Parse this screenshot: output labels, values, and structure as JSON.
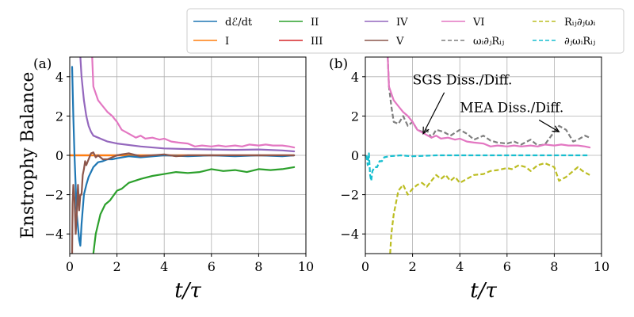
{
  "chart_data": {
    "type": "line",
    "xlabel": "t/τ",
    "ylabel": "Enstrophy Balance",
    "xlim": [
      0,
      10
    ],
    "ylim": [
      -5,
      5
    ],
    "xticks": [
      "0",
      "2",
      "4",
      "6",
      "8",
      "10"
    ],
    "yticks": [
      "−4",
      "−2",
      "0",
      "2",
      "4"
    ],
    "legend": [
      {
        "label": "dℰ/dt",
        "color": "#1f77b4",
        "dash": "solid"
      },
      {
        "label": "I",
        "color": "#ff7f0e",
        "dash": "solid"
      },
      {
        "label": "II",
        "color": "#2ca02c",
        "dash": "solid"
      },
      {
        "label": "III",
        "color": "#d62728",
        "dash": "solid"
      },
      {
        "label": "IV",
        "color": "#9467bd",
        "dash": "solid"
      },
      {
        "label": "V",
        "color": "#8c564b",
        "dash": "solid"
      },
      {
        "label": "VI",
        "color": "#e377c2",
        "dash": "solid"
      },
      {
        "label": "ωᵢ∂ⱼRᵢⱼ",
        "color": "#7f7f7f",
        "dash": "dashed"
      },
      {
        "label": "Rᵢⱼ∂ⱼωᵢ",
        "color": "#bcbd22",
        "dash": "dashed"
      },
      {
        "label": "∂ⱼωᵢRᵢⱼ",
        "color": "#17becf",
        "dash": "dashed"
      }
    ],
    "panels": [
      {
        "label": "(a)",
        "series": [
          {
            "name": "III",
            "color": "#d62728",
            "dash": "solid",
            "x": [
              0,
              1,
              2,
              4,
              6,
              8,
              9.5
            ],
            "y": [
              0,
              0,
              0,
              0,
              0,
              0,
              0
            ]
          },
          {
            "name": "I",
            "color": "#ff7f0e",
            "dash": "solid",
            "x": [
              0,
              2,
              4,
              6,
              8,
              9.5
            ],
            "y": [
              0,
              0,
              0,
              0,
              0,
              0
            ]
          },
          {
            "name": "dℰ/dt",
            "color": "#1f77b4",
            "dash": "solid",
            "x": [
              0.1,
              0.15,
              0.2,
              0.3,
              0.4,
              0.45,
              0.5,
              0.6,
              0.7,
              0.8,
              1.0,
              1.2,
              1.4,
              1.6,
              1.8,
              2.0,
              2.5,
              3.0,
              4.0,
              5.0,
              6.0,
              7.0,
              8.0,
              9.0,
              9.5
            ],
            "y": [
              4.5,
              2.0,
              0,
              -3.0,
              -4.3,
              -4.6,
              -3.5,
              -2.0,
              -1.5,
              -1.1,
              -0.6,
              -0.35,
              -0.3,
              -0.2,
              -0.2,
              -0.15,
              -0.05,
              -0.1,
              0,
              -0.05,
              0,
              -0.05,
              0,
              -0.05,
              0
            ]
          },
          {
            "name": "II",
            "color": "#2ca02c",
            "dash": "solid",
            "x": [
              1.0,
              1.1,
              1.3,
              1.5,
              1.7,
              2.0,
              2.2,
              2.5,
              3.0,
              3.5,
              4.0,
              4.5,
              5.0,
              5.5,
              6.0,
              6.5,
              7.0,
              7.5,
              8.0,
              8.5,
              9.0,
              9.5
            ],
            "y": [
              -5.0,
              -4.0,
              -3.0,
              -2.5,
              -2.3,
              -1.8,
              -1.7,
              -1.4,
              -1.2,
              -1.05,
              -0.95,
              -0.85,
              -0.9,
              -0.85,
              -0.7,
              -0.8,
              -0.75,
              -0.85,
              -0.7,
              -0.75,
              -0.7,
              -0.6
            ]
          },
          {
            "name": "V",
            "color": "#8c564b",
            "dash": "solid",
            "x": [
              0.1,
              0.12,
              0.15,
              0.2,
              0.25,
              0.3,
              0.35,
              0.4,
              0.45,
              0.5,
              0.55,
              0.6,
              0.65,
              0.7,
              0.8,
              0.9,
              1.0,
              1.1,
              1.2,
              1.4,
              1.6,
              1.8,
              2.0,
              2.2,
              2.5,
              3.0,
              3.5,
              4.0,
              4.5,
              5.0,
              6.0,
              7.0,
              8.0,
              9.0,
              9.5
            ],
            "y": [
              -5.0,
              -2.5,
              -1.5,
              -2.2,
              -4.0,
              -3.0,
              -1.5,
              -2.8,
              -2.0,
              -2.0,
              -1.0,
              -0.7,
              -0.3,
              -0.5,
              -0.2,
              0.1,
              0.15,
              -0.1,
              0,
              -0.2,
              -0.2,
              -0.1,
              0,
              0.05,
              0.1,
              -0.05,
              0,
              0.05,
              -0.05,
              0,
              0,
              0,
              0,
              0,
              0
            ]
          },
          {
            "name": "IV",
            "color": "#9467bd",
            "dash": "solid",
            "x": [
              0.45,
              0.5,
              0.6,
              0.7,
              0.8,
              0.9,
              1.0,
              1.2,
              1.4,
              1.6,
              2.0,
              3.0,
              4.0,
              5.0,
              6.0,
              7.0,
              8.0,
              9.0,
              9.5
            ],
            "y": [
              5.0,
              4.0,
              2.8,
              2.0,
              1.5,
              1.2,
              1.0,
              0.9,
              0.8,
              0.7,
              0.6,
              0.45,
              0.35,
              0.32,
              0.3,
              0.28,
              0.3,
              0.25,
              0.2
            ]
          },
          {
            "name": "VI",
            "color": "#e377c2",
            "dash": "solid",
            "x": [
              0.95,
              1.0,
              1.2,
              1.4,
              1.6,
              1.8,
              2.0,
              2.2,
              2.5,
              2.8,
              3.0,
              3.2,
              3.5,
              3.8,
              4.0,
              4.3,
              4.6,
              5.0,
              5.3,
              5.6,
              6.0,
              6.3,
              6.6,
              7.0,
              7.3,
              7.6,
              8.0,
              8.3,
              8.6,
              9.0,
              9.3,
              9.5
            ],
            "y": [
              5.0,
              3.5,
              2.8,
              2.5,
              2.2,
              2.0,
              1.7,
              1.3,
              1.1,
              0.9,
              1.0,
              0.85,
              0.9,
              0.8,
              0.85,
              0.7,
              0.65,
              0.6,
              0.45,
              0.5,
              0.45,
              0.5,
              0.45,
              0.5,
              0.45,
              0.55,
              0.5,
              0.55,
              0.5,
              0.5,
              0.45,
              0.4
            ]
          }
        ]
      },
      {
        "label": "(b)",
        "series": [
          {
            "name": "ωᵢ∂ⱼRᵢⱼ",
            "color": "#7f7f7f",
            "dash": "dashed",
            "x": [
              0.95,
              1.0,
              1.1,
              1.2,
              1.4,
              1.6,
              1.8,
              2.0,
              2.2,
              2.4,
              2.6,
              2.8,
              3.0,
              3.3,
              3.6,
              4.0,
              4.3,
              4.6,
              5.0,
              5.3,
              5.6,
              6.0,
              6.3,
              6.6,
              7.0,
              7.3,
              7.6,
              8.0,
              8.2,
              8.5,
              8.8,
              9.0,
              9.3,
              9.5
            ],
            "y": [
              5.0,
              3.5,
              2.5,
              1.7,
              1.6,
              2.0,
              1.5,
              1.7,
              1.3,
              1.2,
              1.3,
              0.9,
              1.3,
              1.2,
              1.0,
              1.3,
              1.1,
              0.8,
              1.0,
              0.75,
              0.65,
              0.6,
              0.7,
              0.55,
              0.8,
              0.5,
              0.55,
              1.2,
              1.5,
              1.3,
              0.7,
              0.8,
              1.0,
              0.9
            ]
          },
          {
            "name": "VI",
            "color": "#e377c2",
            "dash": "solid",
            "x": [
              0.95,
              1.0,
              1.2,
              1.4,
              1.6,
              1.8,
              2.0,
              2.2,
              2.5,
              2.8,
              3.0,
              3.2,
              3.5,
              3.8,
              4.0,
              4.3,
              4.6,
              5.0,
              5.3,
              5.6,
              6.0,
              6.3,
              6.6,
              7.0,
              7.3,
              7.6,
              8.0,
              8.3,
              8.6,
              9.0,
              9.3,
              9.5
            ],
            "y": [
              5.0,
              3.5,
              2.8,
              2.5,
              2.2,
              2.0,
              1.7,
              1.3,
              1.1,
              0.9,
              1.0,
              0.85,
              0.9,
              0.8,
              0.85,
              0.7,
              0.65,
              0.6,
              0.45,
              0.5,
              0.45,
              0.5,
              0.45,
              0.5,
              0.45,
              0.55,
              0.5,
              0.55,
              0.5,
              0.5,
              0.45,
              0.4
            ]
          },
          {
            "name": "∂ⱼωᵢRᵢⱼ",
            "color": "#17becf",
            "dash": "dashed",
            "x": [
              0.05,
              0.1,
              0.15,
              0.2,
              0.25,
              0.3,
              0.4,
              0.5,
              0.6,
              0.7,
              0.8,
              1.0,
              1.5,
              2.0,
              3.0,
              4.0,
              5.0,
              6.0,
              7.0,
              8.0,
              9.0,
              9.5
            ],
            "y": [
              0,
              -0.5,
              0.1,
              -1.0,
              -1.3,
              -0.8,
              -0.6,
              -0.6,
              -0.3,
              -0.3,
              -0.1,
              -0.05,
              0,
              -0.05,
              0,
              0,
              0,
              0,
              0,
              0,
              0,
              0
            ]
          },
          {
            "name": "Rᵢⱼ∂ⱼωᵢ",
            "color": "#bcbd22",
            "dash": "dashed",
            "x": [
              1.05,
              1.1,
              1.2,
              1.4,
              1.6,
              1.8,
              2.0,
              2.2,
              2.4,
              2.6,
              2.8,
              3.0,
              3.2,
              3.4,
              3.6,
              3.8,
              4.0,
              4.3,
              4.6,
              5.0,
              5.3,
              5.6,
              6.0,
              6.2,
              6.5,
              6.8,
              7.0,
              7.3,
              7.6,
              8.0,
              8.2,
              8.5,
              8.8,
              9.0,
              9.2,
              9.5
            ],
            "y": [
              -5.0,
              -4.0,
              -3.0,
              -1.8,
              -1.5,
              -2.0,
              -1.7,
              -1.5,
              -1.4,
              -1.6,
              -1.3,
              -1.0,
              -1.2,
              -1.0,
              -1.3,
              -1.1,
              -1.4,
              -1.2,
              -1.0,
              -0.95,
              -0.8,
              -0.75,
              -0.65,
              -0.7,
              -0.5,
              -0.6,
              -0.8,
              -0.5,
              -0.4,
              -0.6,
              -1.3,
              -1.1,
              -0.8,
              -0.6,
              -0.8,
              -1.0
            ]
          }
        ],
        "annotations": [
          {
            "text": "SGS Diss./Diff.",
            "x": 2.0,
            "y": 3.6,
            "arrow_to": [
              2.45,
              1.1
            ]
          },
          {
            "text": "MEA Diss./Diff.",
            "x": 4.0,
            "y": 2.2,
            "arrow_to": [
              8.2,
              1.2
            ]
          }
        ]
      }
    ]
  }
}
